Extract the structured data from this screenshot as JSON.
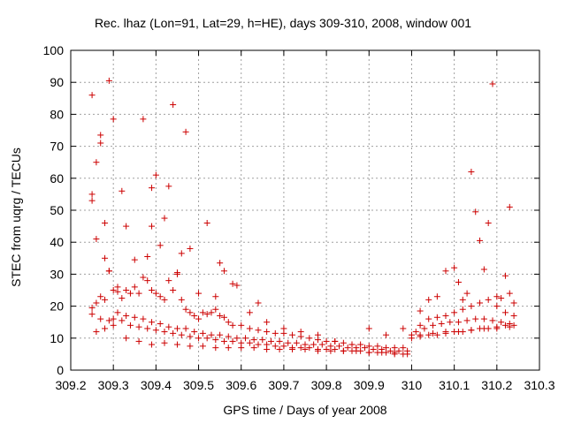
{
  "chart_data": {
    "type": "scatter",
    "title": "Rec. lhaz (Lon=91, Lat=29, h=HE), days 309-310, 2008, window 001",
    "xlabel": "GPS time / Days of year 2008",
    "ylabel": "STEC from uqrg / TECUs",
    "xlim": [
      309.2,
      310.3
    ],
    "ylim": [
      0,
      100
    ],
    "xticks": [
      "309.2",
      "309.3",
      "309.4",
      "309.5",
      "309.6",
      "309.7",
      "309.8",
      "309.9",
      "310",
      "310.1",
      "310.2",
      "310.3"
    ],
    "yticks": [
      "0",
      "10",
      "20",
      "30",
      "40",
      "50",
      "60",
      "70",
      "80",
      "90",
      "100"
    ],
    "grid": true,
    "marker": "+",
    "color": "#cc0000",
    "series": [
      {
        "x": [
          309.25,
          309.25,
          309.25,
          309.26,
          309.26,
          309.27,
          309.27,
          309.28,
          309.28,
          309.29,
          309.29,
          309.3,
          309.31,
          309.32,
          309.33,
          309.35,
          309.37,
          309.38,
          309.39,
          309.39,
          309.4,
          309.41,
          309.42,
          309.43,
          309.44,
          309.45,
          309.46,
          309.47,
          309.48,
          309.5,
          309.52,
          309.54,
          309.55,
          309.56,
          309.58,
          309.59,
          309.62,
          309.64,
          309.66,
          309.7,
          309.74,
          309.78,
          309.82,
          309.86,
          309.9,
          309.94,
          309.98,
          310.02,
          310.04,
          310.06,
          310.08,
          310.1,
          310.11,
          310.12,
          310.13,
          310.14,
          310.15,
          310.16,
          310.17,
          310.18,
          310.19,
          310.2,
          310.21,
          310.22,
          310.23,
          310.23,
          310.24,
          309.25,
          309.26,
          309.27,
          309.28,
          309.29,
          309.3,
          309.31,
          309.32,
          309.33,
          309.34,
          309.35,
          309.36,
          309.37,
          309.38,
          309.39,
          309.4,
          309.41,
          309.42,
          309.43,
          309.44,
          309.45,
          309.46,
          309.47,
          309.48,
          309.49,
          309.5,
          309.51,
          309.52,
          309.53,
          309.54,
          309.55,
          309.56,
          309.57,
          309.58,
          309.6,
          309.62,
          309.64,
          309.66,
          309.68,
          309.7,
          309.72,
          309.74,
          309.76,
          309.78,
          309.8,
          309.82,
          309.84,
          309.86,
          309.88,
          309.9,
          309.92,
          309.94,
          309.96,
          309.98,
          310.0,
          310.02,
          310.04,
          310.06,
          310.08,
          310.1,
          310.12,
          310.14,
          310.16,
          310.18,
          310.2,
          310.22,
          310.24,
          309.25,
          309.27,
          309.29,
          309.31,
          309.33,
          309.35,
          309.37,
          309.39,
          309.41,
          309.43,
          309.45,
          309.47,
          309.49,
          309.51,
          309.53,
          309.55,
          309.57,
          309.59,
          309.61,
          309.63,
          309.65,
          309.67,
          309.69,
          309.71,
          309.73,
          309.75,
          309.77,
          309.79,
          309.81,
          309.83,
          309.85,
          309.87,
          309.89,
          309.91,
          309.93,
          309.95,
          309.97,
          309.99,
          310.01,
          310.03,
          310.05,
          310.07,
          310.09,
          310.11,
          310.13,
          310.15,
          310.17,
          310.19,
          310.21,
          310.23,
          309.26,
          309.28,
          309.3,
          309.32,
          309.34,
          309.36,
          309.38,
          309.4,
          309.42,
          309.44,
          309.46,
          309.48,
          309.5,
          309.52,
          309.54,
          309.56,
          309.58,
          309.6,
          309.62,
          309.64,
          309.66,
          309.68,
          309.7,
          309.72,
          309.74,
          309.76,
          309.78,
          309.8,
          309.82,
          309.84,
          309.86,
          309.88,
          309.9,
          309.92,
          309.94,
          309.96,
          309.98,
          310.0,
          310.02,
          310.04,
          310.06,
          310.08,
          310.1,
          310.12,
          310.14,
          310.16,
          310.18,
          310.2,
          310.22,
          310.24,
          309.3,
          309.33,
          309.36,
          309.39,
          309.42,
          309.45,
          309.48,
          309.51,
          309.54,
          309.57,
          309.6,
          309.63,
          309.66,
          309.69,
          309.72,
          309.75,
          309.78,
          309.81,
          309.84,
          309.87,
          309.9,
          309.93,
          309.96,
          309.99,
          310.02,
          310.05,
          310.08,
          310.11,
          310.14,
          310.17,
          310.2,
          310.23
        ],
        "y": [
          86,
          55,
          53,
          41,
          65,
          71,
          73.5,
          35,
          46,
          31,
          90.5,
          78.5,
          26,
          56,
          45,
          34.5,
          78.5,
          35.5,
          57,
          45,
          61,
          39,
          47.5,
          57.5,
          83,
          30.5,
          36.5,
          74.5,
          38,
          24,
          46,
          23,
          33.5,
          31,
          27,
          26.5,
          18,
          21,
          15,
          13,
          12,
          11,
          9,
          8,
          13,
          11,
          13,
          18.5,
          22,
          23,
          31,
          32,
          27.5,
          22,
          24,
          62,
          49.5,
          40.5,
          31.5,
          46,
          89.5,
          23,
          22.5,
          29.5,
          51,
          24,
          21,
          19.5,
          21,
          23,
          22,
          31,
          25,
          24.5,
          22.5,
          25,
          24,
          26,
          24,
          29,
          28,
          25,
          24,
          23,
          22,
          28,
          25,
          30,
          22,
          19,
          18,
          17,
          16,
          18,
          17.5,
          18,
          19,
          17,
          16.5,
          15,
          14,
          14,
          13,
          12.5,
          12,
          11.5,
          11.5,
          11,
          10.5,
          10,
          9.5,
          9,
          9,
          8.5,
          8,
          8,
          7.5,
          7.5,
          7,
          7,
          7,
          11,
          14,
          16,
          16.5,
          17,
          18,
          19,
          20,
          21,
          22,
          20,
          18,
          17,
          17.5,
          16,
          15.5,
          18,
          17,
          16.5,
          16,
          15,
          14.5,
          13.5,
          13,
          13,
          12,
          11.5,
          11,
          11,
          10.5,
          10,
          10,
          9.5,
          9.5,
          9,
          9,
          8.5,
          8.5,
          8,
          8,
          8,
          7.5,
          7.5,
          7,
          7,
          7,
          6.5,
          6.5,
          6,
          6,
          6,
          12,
          13,
          14,
          14.5,
          15,
          15,
          15.5,
          16,
          16,
          15.5,
          15,
          14.5,
          12,
          13,
          14,
          15.5,
          14,
          13.5,
          13,
          12.5,
          12,
          11.5,
          11,
          10.5,
          10,
          10,
          9.5,
          9,
          9,
          8.5,
          8.5,
          8,
          8,
          7.5,
          7.5,
          7,
          7,
          7,
          6.5,
          6.5,
          6.5,
          6,
          6,
          6,
          5.5,
          5.5,
          5.5,
          5,
          5,
          10,
          10.5,
          11,
          11,
          11.5,
          12,
          12,
          12.5,
          13,
          13,
          13.5,
          14,
          14,
          16,
          10,
          9,
          8,
          8.5,
          8,
          7.5,
          7.5,
          7,
          7,
          7,
          7,
          6.5,
          6.5,
          6.5,
          6.5,
          6,
          6,
          6,
          6,
          5.5,
          5.5,
          5.5,
          5,
          11,
          11.5,
          12,
          12,
          12.5,
          13,
          13,
          13.5
        ]
      }
    ]
  }
}
